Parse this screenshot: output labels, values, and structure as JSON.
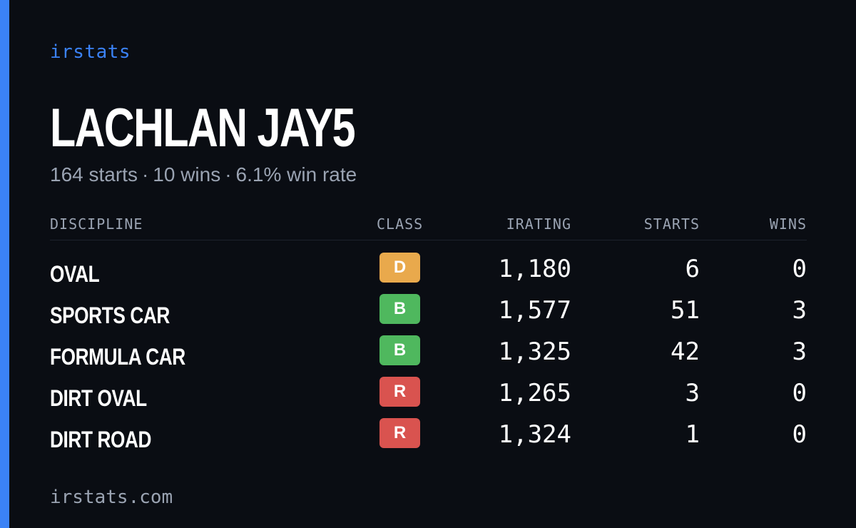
{
  "brand": "irstats",
  "driver": {
    "name": "LACHLAN JAY5",
    "starts_text": "164 starts",
    "wins_text": "10 wins",
    "win_rate_text": "6.1% win rate",
    "separator": "·"
  },
  "table": {
    "headers": {
      "discipline": "DISCIPLINE",
      "class": "CLASS",
      "irating": "IRATING",
      "starts": "STARTS",
      "wins": "WINS"
    },
    "rows": [
      {
        "discipline": "OVAL",
        "class": "D",
        "class_color": "#e9a94c",
        "irating": "1,180",
        "starts": "6",
        "wins": "0"
      },
      {
        "discipline": "SPORTS CAR",
        "class": "B",
        "class_color": "#4fb85e",
        "irating": "1,577",
        "starts": "51",
        "wins": "3"
      },
      {
        "discipline": "FORMULA CAR",
        "class": "B",
        "class_color": "#4fb85e",
        "irating": "1,325",
        "starts": "42",
        "wins": "3"
      },
      {
        "discipline": "DIRT OVAL",
        "class": "R",
        "class_color": "#d9534f",
        "irating": "1,265",
        "starts": "3",
        "wins": "0"
      },
      {
        "discipline": "DIRT ROAD",
        "class": "R",
        "class_color": "#d9534f",
        "irating": "1,324",
        "starts": "1",
        "wins": "0"
      }
    ]
  },
  "footer": "irstats.com",
  "colors": {
    "background": "#0a0d13",
    "accent": "#3b82f6",
    "muted_text": "#9aa3b2"
  }
}
